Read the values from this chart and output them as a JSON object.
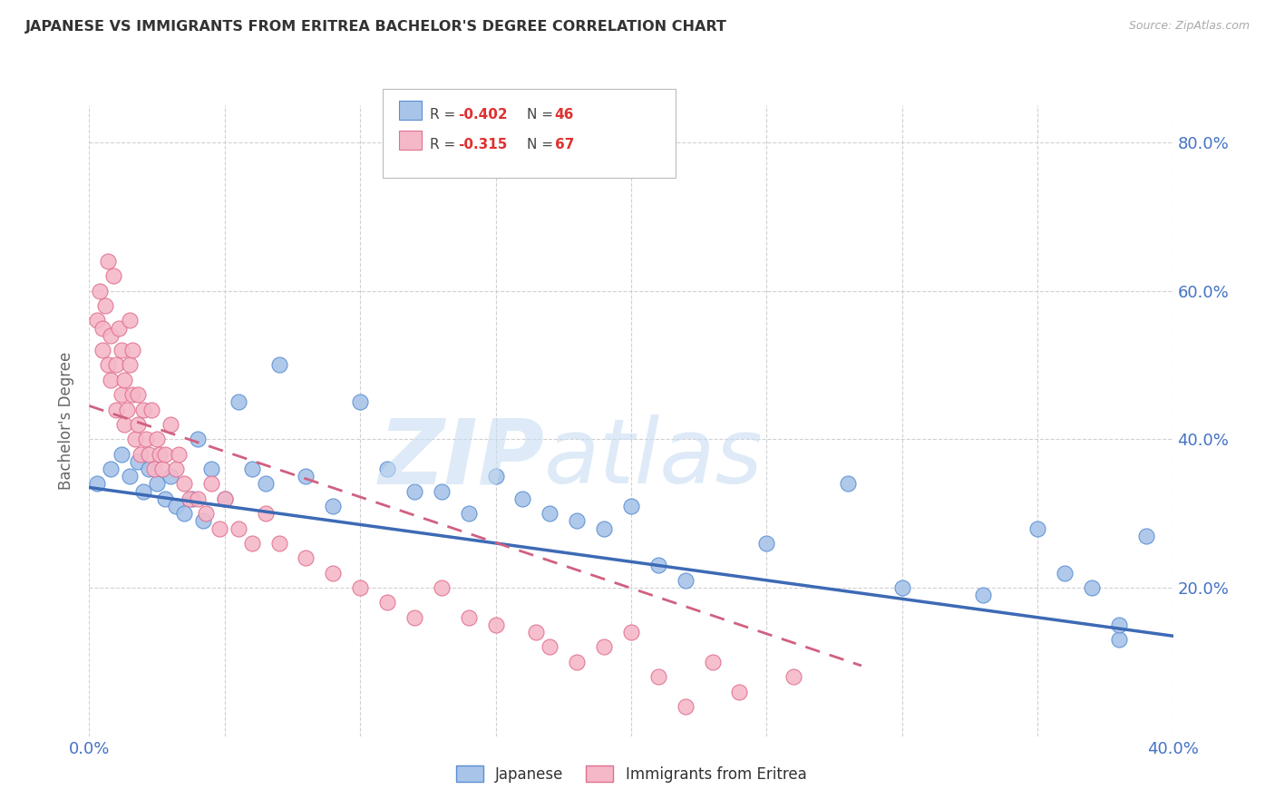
{
  "title": "JAPANESE VS IMMIGRANTS FROM ERITREA BACHELOR'S DEGREE CORRELATION CHART",
  "source_text": "Source: ZipAtlas.com",
  "ylabel": "Bachelor's Degree",
  "xlim": [
    0.0,
    0.4
  ],
  "ylim": [
    0.0,
    0.85
  ],
  "japanese_color": "#a8c4e8",
  "eritrea_color": "#f5b8c8",
  "japanese_edge": "#5a8fd4",
  "eritrea_edge": "#e07090",
  "trend_japanese_color": "#3d6ab5",
  "trend_eritrea_color": "#d06080",
  "background_color": "#ffffff",
  "grid_color": "#cccccc",
  "axis_color": "#4472c4",
  "title_color": "#333333",
  "japanese_x": [
    0.003,
    0.008,
    0.012,
    0.015,
    0.018,
    0.02,
    0.022,
    0.025,
    0.028,
    0.03,
    0.032,
    0.035,
    0.038,
    0.04,
    0.042,
    0.045,
    0.05,
    0.055,
    0.06,
    0.065,
    0.07,
    0.08,
    0.09,
    0.1,
    0.11,
    0.12,
    0.13,
    0.14,
    0.15,
    0.16,
    0.17,
    0.18,
    0.19,
    0.2,
    0.21,
    0.22,
    0.25,
    0.28,
    0.3,
    0.33,
    0.35,
    0.36,
    0.37,
    0.38,
    0.38,
    0.39
  ],
  "japanese_y": [
    0.34,
    0.36,
    0.38,
    0.35,
    0.37,
    0.33,
    0.36,
    0.34,
    0.32,
    0.35,
    0.31,
    0.3,
    0.32,
    0.4,
    0.29,
    0.36,
    0.32,
    0.45,
    0.36,
    0.34,
    0.5,
    0.35,
    0.31,
    0.45,
    0.36,
    0.33,
    0.33,
    0.3,
    0.35,
    0.32,
    0.3,
    0.29,
    0.28,
    0.31,
    0.23,
    0.21,
    0.26,
    0.34,
    0.2,
    0.19,
    0.28,
    0.22,
    0.2,
    0.13,
    0.15,
    0.27
  ],
  "eritrea_x": [
    0.003,
    0.004,
    0.005,
    0.005,
    0.006,
    0.007,
    0.007,
    0.008,
    0.008,
    0.009,
    0.01,
    0.01,
    0.011,
    0.012,
    0.012,
    0.013,
    0.013,
    0.014,
    0.015,
    0.015,
    0.016,
    0.016,
    0.017,
    0.018,
    0.018,
    0.019,
    0.02,
    0.021,
    0.022,
    0.023,
    0.024,
    0.025,
    0.026,
    0.027,
    0.028,
    0.03,
    0.032,
    0.033,
    0.035,
    0.037,
    0.04,
    0.043,
    0.045,
    0.048,
    0.05,
    0.055,
    0.06,
    0.065,
    0.07,
    0.08,
    0.09,
    0.1,
    0.11,
    0.12,
    0.13,
    0.14,
    0.15,
    0.165,
    0.17,
    0.18,
    0.19,
    0.2,
    0.21,
    0.22,
    0.23,
    0.24,
    0.26
  ],
  "eritrea_y": [
    0.56,
    0.6,
    0.52,
    0.55,
    0.58,
    0.5,
    0.64,
    0.48,
    0.54,
    0.62,
    0.5,
    0.44,
    0.55,
    0.52,
    0.46,
    0.42,
    0.48,
    0.44,
    0.56,
    0.5,
    0.52,
    0.46,
    0.4,
    0.46,
    0.42,
    0.38,
    0.44,
    0.4,
    0.38,
    0.44,
    0.36,
    0.4,
    0.38,
    0.36,
    0.38,
    0.42,
    0.36,
    0.38,
    0.34,
    0.32,
    0.32,
    0.3,
    0.34,
    0.28,
    0.32,
    0.28,
    0.26,
    0.3,
    0.26,
    0.24,
    0.22,
    0.2,
    0.18,
    0.16,
    0.2,
    0.16,
    0.15,
    0.14,
    0.12,
    0.1,
    0.12,
    0.14,
    0.08,
    0.04,
    0.1,
    0.06,
    0.08
  ]
}
